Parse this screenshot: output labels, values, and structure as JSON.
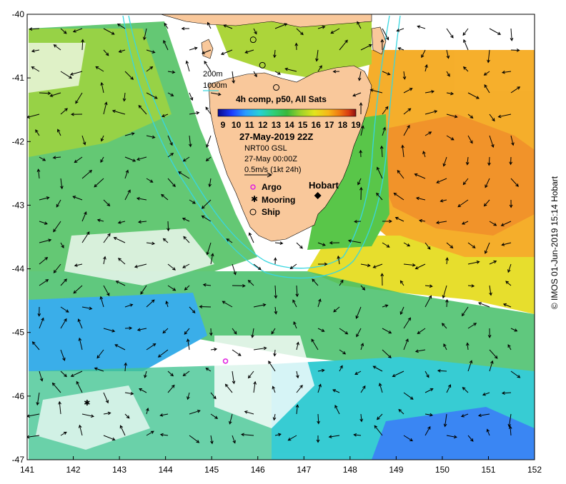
{
  "map": {
    "lon_range": [
      141,
      152
    ],
    "lat_range": [
      -47,
      -40
    ],
    "lon_ticks": [
      "141",
      "142",
      "143",
      "144",
      "145",
      "146",
      "147",
      "148",
      "149",
      "150",
      "151",
      "152"
    ],
    "lat_ticks": [
      "-40",
      "-41",
      "-42",
      "-43",
      "-44",
      "-45",
      "-46",
      "-47"
    ],
    "land_color": "#f9c89b",
    "contour_color": "#38d6e0"
  },
  "legend": {
    "isobath_200": "200m",
    "isobath_1000": "1000m",
    "composite_title": "4h comp, p50, All Sats",
    "colorbar_ticks": [
      "9",
      "10",
      "11",
      "12",
      "13",
      "14",
      "15",
      "16",
      "17",
      "18",
      "19"
    ],
    "colorbar_colors": [
      "#0a0a8c",
      "#1e3cff",
      "#2a9cff",
      "#27d0d6",
      "#2fcf7a",
      "#3ab83a",
      "#9ed22a",
      "#e3e41c",
      "#f7b718",
      "#f07a12",
      "#d83a12",
      "#8a1010"
    ],
    "date_label": "27-May-2019 22Z",
    "current_source": "NRT00 GSL",
    "current_time": "27-May 00:00Z",
    "scale_label": "0.5m/s (1kt 24h)",
    "argo_label": "Argo",
    "mooring_label": "Mooring",
    "ship_label": "Ship",
    "argo_color": "#e020e0"
  },
  "places": {
    "hobart": "Hobart"
  },
  "markers": {
    "argo": [
      {
        "lon": 145.3,
        "lat": -45.45
      }
    ],
    "mooring": [
      {
        "lon": 142.3,
        "lat": -46.1
      }
    ],
    "ships": [
      {
        "lon": 145.9,
        "lat": -40.4
      },
      {
        "lon": 146.1,
        "lat": -40.8
      },
      {
        "lon": 146.4,
        "lat": -41.15
      }
    ],
    "hobart": {
      "lon": 147.3,
      "lat": -42.85
    }
  },
  "credit": "© IMOS 01-Jun-2019 15:14 Hobart"
}
